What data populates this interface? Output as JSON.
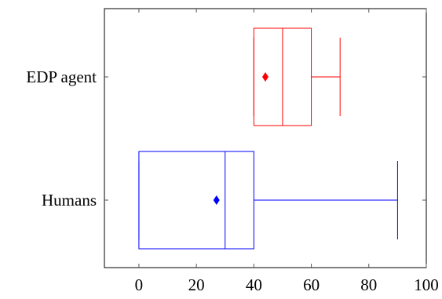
{
  "chart_data": {
    "type": "boxplot",
    "title": "",
    "xlabel": "",
    "ylabel": "",
    "xlim": [
      -12,
      100
    ],
    "xticks": [
      0,
      20,
      40,
      60,
      80,
      100
    ],
    "xtick_labels": [
      "0",
      "20",
      "40",
      "60",
      "80",
      "100"
    ],
    "orientation": "horizontal",
    "grid": false,
    "categories": [
      "EDP agent",
      "Humans"
    ],
    "series": [
      {
        "category": "EDP agent",
        "color": "#ff0000",
        "whisker_low": 40,
        "q1": 40,
        "median": 50,
        "q3": 60,
        "whisker_high": 70,
        "mean": 44
      },
      {
        "category": "Humans",
        "color": "#0000ff",
        "whisker_low": 0,
        "q1": 0,
        "median": 30,
        "q3": 40,
        "whisker_high": 90,
        "mean": 27
      }
    ]
  }
}
